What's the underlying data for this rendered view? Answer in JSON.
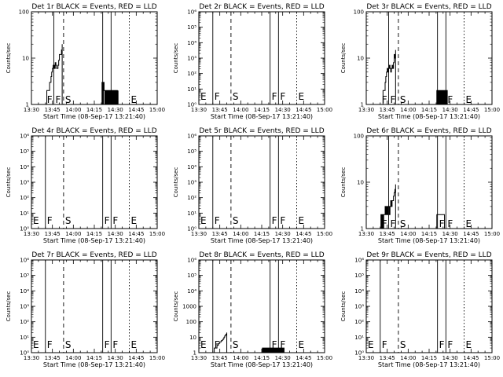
{
  "figure": {
    "x_ticks": [
      "13:30",
      "13:45",
      "14:00",
      "14:15",
      "14:30",
      "14:45",
      "15:00"
    ],
    "xlabel": "Start Time (08-Sep-17 13:21:40)",
    "ylabel": "Counts/sec",
    "colors": {
      "events": "#000000",
      "lld": "#ff0000",
      "axes": "#000000",
      "background": "#ffffff"
    }
  },
  "chart_data": [
    {
      "type": "line",
      "title": "Det 1r BLACK = Events, RED = LLD",
      "y_scale": "log",
      "ylim": [
        1,
        100
      ],
      "y_ticks": [
        "1",
        "10",
        "100"
      ],
      "x_range_min": [
        0,
        90
      ],
      "markers": [
        {
          "label": "F",
          "x": 10
        },
        {
          "label": "F",
          "x": 16
        },
        {
          "label": "S",
          "x": 23
        },
        {
          "label": "F",
          "x": 51
        },
        {
          "label": "F",
          "x": 57
        },
        {
          "label": "E",
          "x": 70
        }
      ],
      "series": [
        {
          "name": "Events",
          "x": [
            10,
            11,
            12,
            13,
            13.5,
            14,
            14.5,
            15,
            15.5,
            16,
            16.5,
            17,
            17.5,
            18,
            18.5,
            19,
            19.5,
            20,
            21.5,
            22,
            50,
            50.5,
            51,
            51.5,
            52,
            52.5,
            53,
            53.5,
            54,
            54.5,
            55,
            55.5,
            56,
            56.5,
            57,
            57.5,
            58,
            58.5,
            59,
            59.5,
            60,
            60.5,
            61,
            61.5,
            62
          ],
          "y": [
            1,
            2,
            2,
            3,
            3,
            4,
            5,
            6,
            7,
            7,
            6,
            8,
            7,
            6,
            6,
            7,
            9,
            12,
            15,
            20,
            1,
            3,
            1,
            3,
            2,
            1,
            2,
            1,
            2,
            1,
            2,
            1,
            2,
            1,
            2,
            1,
            2,
            1,
            2,
            1,
            2,
            1,
            2,
            1,
            2
          ]
        }
      ]
    },
    {
      "type": "line",
      "title": "Det 2r BLACK = Events, RED = LLD",
      "y_scale": "log",
      "ylim": [
        1,
        1000000
      ],
      "y_ticks": [
        "10⁰",
        "10¹",
        "10²",
        "10³",
        "10⁴",
        "10⁵",
        "10⁶"
      ],
      "x_range_min": [
        0,
        90
      ],
      "markers": [
        {
          "label": "E",
          "x": 0
        },
        {
          "label": "F",
          "x": 10
        },
        {
          "label": "S",
          "x": 23
        },
        {
          "label": "F",
          "x": 51
        },
        {
          "label": "F",
          "x": 57
        },
        {
          "label": "E",
          "x": 70
        }
      ],
      "series": []
    },
    {
      "type": "line",
      "title": "Det 3r BLACK = Events, RED = LLD",
      "y_scale": "log",
      "ylim": [
        1,
        100
      ],
      "y_ticks": [
        "1",
        "10",
        "100"
      ],
      "x_range_min": [
        0,
        90
      ],
      "markers": [
        {
          "label": "F",
          "x": 10
        },
        {
          "label": "F",
          "x": 16
        },
        {
          "label": "S",
          "x": 23
        },
        {
          "label": "F",
          "x": 51
        },
        {
          "label": "F",
          "x": 57
        },
        {
          "label": "E",
          "x": 70
        }
      ],
      "series": [
        {
          "name": "Events",
          "x": [
            10,
            11,
            12,
            13,
            13.5,
            14,
            14.5,
            15,
            15.5,
            16,
            16.5,
            17,
            17.5,
            18,
            18.5,
            19,
            19.5,
            20,
            20.5,
            21,
            50,
            50.5,
            51,
            51.5,
            52,
            52.5,
            53,
            53.5,
            54,
            54.5,
            55,
            55.5,
            56,
            56.5,
            57,
            57.5,
            58
          ],
          "y": [
            1,
            1,
            2,
            2,
            3,
            4,
            5,
            6,
            5,
            6,
            7,
            6,
            5,
            6,
            7,
            6,
            8,
            12,
            10,
            15,
            1,
            2,
            1,
            2,
            1,
            2,
            1,
            2,
            1,
            2,
            1,
            2,
            1,
            2,
            1,
            2,
            1
          ]
        }
      ]
    },
    {
      "type": "line",
      "title": "Det 4r BLACK = Events, RED = LLD",
      "y_scale": "log",
      "ylim": [
        1,
        1000000
      ],
      "y_ticks": [
        "10⁰",
        "10¹",
        "10²",
        "10³",
        "10⁴",
        "10⁵",
        "10⁶"
      ],
      "x_range_min": [
        0,
        90
      ],
      "markers": [
        {
          "label": "E",
          "x": 0
        },
        {
          "label": "F",
          "x": 10
        },
        {
          "label": "S",
          "x": 23
        },
        {
          "label": "F",
          "x": 51
        },
        {
          "label": "F",
          "x": 57
        },
        {
          "label": "E",
          "x": 70
        }
      ],
      "series": []
    },
    {
      "type": "line",
      "title": "Det 5r BLACK = Events, RED = LLD",
      "y_scale": "log",
      "ylim": [
        1,
        1000000
      ],
      "y_ticks": [
        "10⁰",
        "10¹",
        "10²",
        "10³",
        "10⁴",
        "10⁵",
        "10⁶"
      ],
      "x_range_min": [
        0,
        90
      ],
      "markers": [
        {
          "label": "E",
          "x": 0
        },
        {
          "label": "F",
          "x": 10
        },
        {
          "label": "S",
          "x": 23
        },
        {
          "label": "F",
          "x": 51
        },
        {
          "label": "F",
          "x": 57
        },
        {
          "label": "E",
          "x": 70
        }
      ],
      "series": []
    },
    {
      "type": "line",
      "title": "Det 6r BLACK = Events, RED = LLD",
      "y_scale": "log",
      "ylim": [
        1,
        100
      ],
      "y_ticks": [
        "1",
        "10",
        "100"
      ],
      "x_range_min": [
        0,
        90
      ],
      "markers": [
        {
          "label": "F",
          "x": 10
        },
        {
          "label": "F",
          "x": 16
        },
        {
          "label": "S",
          "x": 23
        },
        {
          "label": "F",
          "x": 51
        },
        {
          "label": "F",
          "x": 57
        },
        {
          "label": "E",
          "x": 70
        }
      ],
      "series": [
        {
          "name": "Events",
          "x": [
            10,
            10.5,
            11,
            11.5,
            12,
            12.5,
            13,
            13.5,
            14,
            14.5,
            15,
            15.5,
            16,
            16.5,
            17,
            17.5,
            18,
            18.5,
            19,
            19.5,
            20,
            20.5,
            21,
            50,
            50.5,
            51,
            51.5,
            52,
            52.5,
            53,
            53.5,
            54,
            54.5,
            55,
            55.5,
            56
          ],
          "y": [
            1,
            2,
            1,
            2,
            1,
            2,
            2,
            3,
            2,
            3,
            2,
            3,
            3,
            2,
            3,
            4,
            3,
            4,
            4,
            5,
            6,
            7,
            9,
            1,
            2,
            2,
            2,
            2,
            2,
            2,
            2,
            2,
            2,
            2,
            2,
            1
          ]
        }
      ]
    },
    {
      "type": "line",
      "title": "Det 7r BLACK = Events, RED = LLD",
      "y_scale": "log",
      "ylim": [
        1,
        1000000
      ],
      "y_ticks": [
        "10⁰",
        "10¹",
        "10²",
        "10³",
        "10⁴",
        "10⁵",
        "10⁶"
      ],
      "x_range_min": [
        0,
        90
      ],
      "markers": [
        {
          "label": "E",
          "x": 0
        },
        {
          "label": "F",
          "x": 10
        },
        {
          "label": "S",
          "x": 23
        },
        {
          "label": "F",
          "x": 51
        },
        {
          "label": "F",
          "x": 57
        },
        {
          "label": "E",
          "x": 70
        }
      ],
      "series": []
    },
    {
      "type": "line",
      "title": "Det 8r BLACK = Events, RED = LLD",
      "y_scale": "log",
      "ylim": [
        1,
        1000000
      ],
      "y_ticks": [
        "1",
        "10",
        "100",
        "1000",
        "10⁴",
        "10⁵",
        "10⁶"
      ],
      "x_range_min": [
        0,
        90
      ],
      "markers": [
        {
          "label": "E",
          "x": 0
        },
        {
          "label": "F",
          "x": 10
        },
        {
          "label": "S",
          "x": 23
        },
        {
          "label": "F",
          "x": 51
        },
        {
          "label": "F",
          "x": 57
        },
        {
          "label": "E",
          "x": 70
        }
      ],
      "series": [
        {
          "name": "Events",
          "x": [
            10,
            11,
            12,
            13,
            13.5,
            14,
            14.5,
            15,
            15.5,
            16,
            16.5,
            17,
            17.5,
            18,
            18.5,
            19,
            19.5,
            20,
            45,
            45.5,
            46,
            46.5,
            47,
            47.5,
            48,
            48.5,
            49,
            49.5,
            50,
            50.5,
            51,
            51.5,
            52,
            52.5,
            53,
            53.5,
            54,
            54.5,
            55,
            55.5,
            56,
            56.5,
            57,
            57.5,
            58,
            58.5,
            59,
            59.5,
            60,
            60.5,
            61
          ],
          "y": [
            1,
            2,
            2,
            3,
            3,
            4,
            4,
            5,
            5,
            6,
            6,
            7,
            8,
            10,
            12,
            14,
            16,
            20,
            1,
            2,
            1,
            2,
            1,
            2,
            1,
            2,
            1,
            2,
            1,
            2,
            1,
            2,
            1,
            2,
            1,
            2,
            1,
            2,
            1,
            2,
            1,
            2,
            1,
            2,
            1,
            2,
            1,
            2,
            1,
            2,
            1
          ]
        }
      ]
    },
    {
      "type": "line",
      "title": "Det 9r BLACK = Events, RED = LLD",
      "y_scale": "log",
      "ylim": [
        1,
        1000000
      ],
      "y_ticks": [
        "10⁰",
        "10¹",
        "10²",
        "10³",
        "10⁴",
        "10⁵",
        "10⁶"
      ],
      "x_range_min": [
        0,
        90
      ],
      "markers": [
        {
          "label": "E",
          "x": 0
        },
        {
          "label": "F",
          "x": 10
        },
        {
          "label": "S",
          "x": 23
        },
        {
          "label": "F",
          "x": 51
        },
        {
          "label": "F",
          "x": 57
        },
        {
          "label": "E",
          "x": 70
        }
      ],
      "series": []
    }
  ]
}
